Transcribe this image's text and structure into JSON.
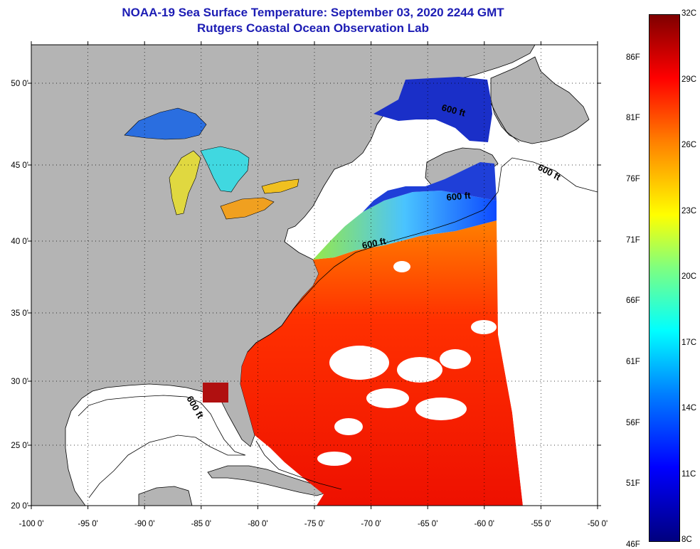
{
  "title": {
    "line1": "NOAA-19 Sea Surface Temperature:  September 03, 2020 2244 GMT",
    "line2": "Rutgers Coastal Ocean Observation Lab"
  },
  "map": {
    "lon_ticks": [
      "-100 0'",
      "-95 0'",
      "-90 0'",
      "-85 0'",
      "-80 0'",
      "-75 0'",
      "-70 0'",
      "-65 0'",
      "-60 0'",
      "-55 0'",
      "-50 0'"
    ],
    "lat_ticks": [
      "50 0'",
      "45 0'",
      "40 0'",
      "35 0'",
      "30 0'",
      "25 0'",
      "20 0'"
    ],
    "contour_labels": [
      "600 ft",
      "600 ft",
      "600 ft",
      "600 ft",
      "600 ft"
    ],
    "colors": {
      "land": "#b4b4b4",
      "nodata": "#ffffff",
      "coast": "#000000"
    }
  },
  "colorbar": {
    "celsius": [
      "32C",
      "29C",
      "26C",
      "23C",
      "20C",
      "17C",
      "14C",
      "11C",
      "8C"
    ],
    "fahrenheit": [
      "86F",
      "81F",
      "76F",
      "71F",
      "66F",
      "61F",
      "56F",
      "51F",
      "46F"
    ],
    "range_c": [
      8,
      32
    ]
  }
}
